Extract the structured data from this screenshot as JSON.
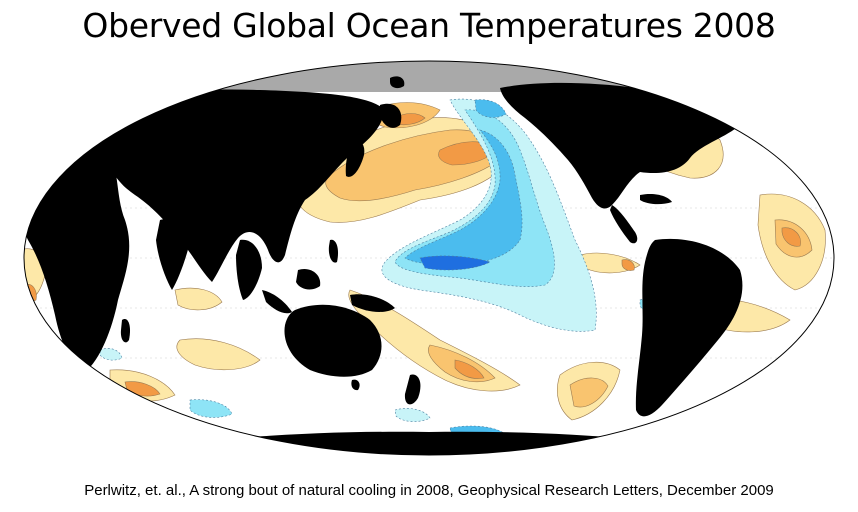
{
  "title": "Oberved Global Ocean Temperatures 2008",
  "caption": "Perlwitz, et. al., A strong bout of natural cooling in 2008, Geophysical Research Letters, December 2009",
  "colors": {
    "land": "#000000",
    "sea_ice": "#a9a9a9",
    "ocean_neutral": "#ffffff",
    "warm_1": "#fde8a8",
    "warm_2": "#f9c46f",
    "warm_3": "#f29a45",
    "warm_4": "#e0502a",
    "cool_1": "#c8f4f8",
    "cool_2": "#8ee4f6",
    "cool_3": "#4bbcee",
    "cool_4": "#1f6fe0"
  }
}
